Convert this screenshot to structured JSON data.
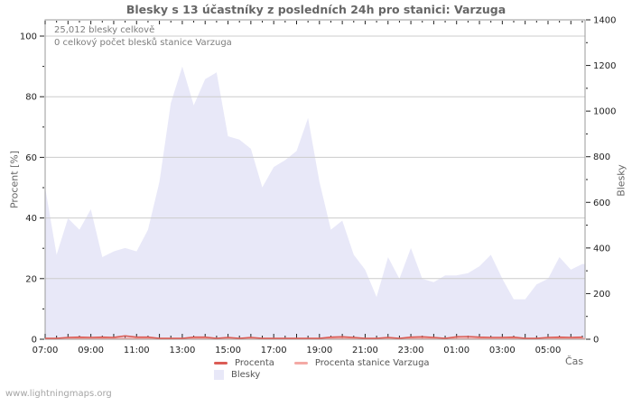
{
  "page": {
    "watermark": "www.lightningmaps.org"
  },
  "chart": {
    "title": "Blesky s 13 účastníky z posledních 24h pro stanici: Varzuga",
    "annotations": [
      "25,012 blesky celkově",
      "0 celkový počet blesků stanice Varzuga"
    ],
    "xlabel": "Čas",
    "ylabel_left": "Procent  [%]",
    "ylabel_right": "Blesky"
  },
  "chart_data": {
    "type": "area",
    "x_unit": "30min",
    "x_start": "07:00",
    "x_span_hours": 23.62,
    "x_tick_labels": [
      "07:00",
      "09:00",
      "11:00",
      "13:00",
      "15:00",
      "17:00",
      "19:00",
      "21:00",
      "23:00",
      "01:00",
      "03:00",
      "05:00"
    ],
    "y_left": {
      "label": "Procent [%]",
      "min": 0,
      "max": 100,
      "ticks": [
        0,
        20,
        40,
        60,
        80,
        100
      ],
      "minor_step": 10
    },
    "y_right": {
      "label": "Blesky",
      "min": 0,
      "max": 1400,
      "ticks": [
        0,
        200,
        400,
        600,
        800,
        1000,
        1200,
        1400
      ],
      "minor_step": 100
    },
    "grid": true,
    "legend_position": "bottom",
    "legend_rows": [
      [
        "Procenta",
        "Procenta stanice Varzuga"
      ],
      [
        "Blesky"
      ]
    ],
    "series": [
      {
        "name": "Blesky",
        "type": "area",
        "axis": "right",
        "color": "#e8e8f8",
        "values": [
          665,
          370,
          530,
          480,
          570,
          360,
          385,
          400,
          385,
          480,
          690,
          1035,
          1195,
          1025,
          1140,
          1170,
          890,
          875,
          835,
          665,
          755,
          785,
          825,
          970,
          690,
          480,
          520,
          370,
          305,
          185,
          360,
          265,
          400,
          265,
          250,
          280,
          280,
          290,
          320,
          370,
          265,
          175,
          175,
          240,
          265,
          360,
          305,
          330
        ]
      },
      {
        "name": "Procenta",
        "type": "line",
        "axis": "left",
        "color": "#db5c55",
        "values": [
          0,
          0,
          0.3,
          0.4,
          0.3,
          0.4,
          0.3,
          0.8,
          0.4,
          0.4,
          0,
          0,
          0,
          0.4,
          0.4,
          0,
          0.3,
          0,
          0.3,
          0,
          0,
          0,
          0,
          0,
          0,
          0.4,
          0.5,
          0.3,
          0,
          0,
          0.3,
          0,
          0.4,
          0.5,
          0.3,
          0,
          0.5,
          0.6,
          0.4,
          0.3,
          0.3,
          0.4,
          0,
          0,
          0.3,
          0.4,
          0.3,
          0.4
        ]
      },
      {
        "name": "Procenta stanice Varzuga",
        "type": "line",
        "axis": "left",
        "color": "#f4a9a5",
        "values": [
          0,
          0,
          0,
          0,
          0,
          0,
          0,
          0,
          0,
          0,
          0,
          0,
          0,
          0,
          0,
          0,
          0,
          0,
          0,
          0,
          0,
          0,
          0,
          0,
          0,
          0,
          0,
          0,
          0,
          0,
          0,
          0,
          0,
          0,
          0,
          0,
          0,
          0,
          0,
          0,
          0,
          0,
          0,
          0,
          0,
          0,
          0,
          0
        ]
      }
    ],
    "colors": {
      "grid": "#cccccc",
      "border": "#9a9a9a",
      "tick_text": "#222222",
      "title_text": "#666666",
      "annotation_text": "#7d7d7d",
      "watermark_text": "#a5a5a5"
    }
  }
}
